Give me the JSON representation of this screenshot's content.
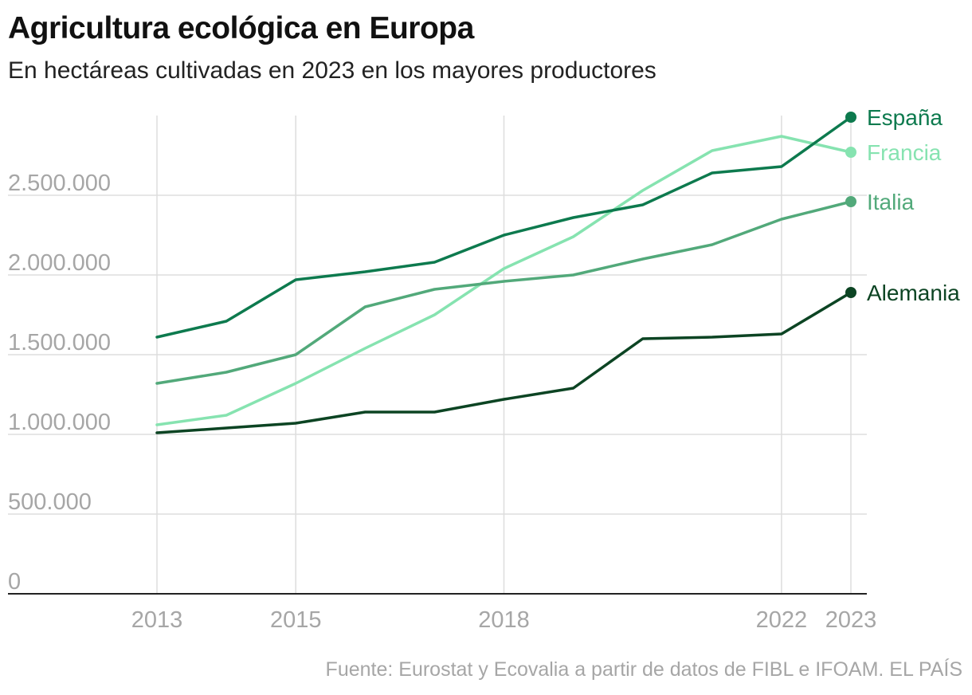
{
  "title": "Agricultura ecológica en Europa",
  "subtitle": "En hectáreas cultivadas en 2023 en los mayores productores",
  "source": "Fuente: Eurostat y Ecovalia a partir de datos de FIBL e IFOAM. EL PAÍS",
  "chart_data": {
    "type": "line",
    "title": "Agricultura ecológica en Europa",
    "subtitle": "En hectáreas cultivadas en 2023 en los mayores productores",
    "xlabel": "",
    "ylabel": "",
    "x": [
      2013,
      2014,
      2015,
      2016,
      2017,
      2018,
      2019,
      2020,
      2021,
      2022,
      2023
    ],
    "x_ticks": [
      "2013",
      "2015",
      "2018",
      "2022",
      "2023"
    ],
    "y_ticks": [
      "0",
      "500.000",
      "1.000.000",
      "1.500.000",
      "2.000.000",
      "2.500.000"
    ],
    "ylim": [
      0,
      3000000
    ],
    "grid": true,
    "legend": "direct labels at line ends (right)",
    "series": [
      {
        "name": "España",
        "color": "#0d7a4e",
        "values": [
          1610000,
          1710000,
          1970000,
          2020000,
          2080000,
          2250000,
          2360000,
          2440000,
          2640000,
          2680000,
          2990000
        ]
      },
      {
        "name": "Francia",
        "color": "#86e3b0",
        "values": [
          1060000,
          1120000,
          1320000,
          1540000,
          1750000,
          2040000,
          2240000,
          2530000,
          2780000,
          2870000,
          2770000
        ]
      },
      {
        "name": "Italia",
        "color": "#52a97a",
        "values": [
          1320000,
          1390000,
          1500000,
          1800000,
          1910000,
          1960000,
          2000000,
          2100000,
          2190000,
          2350000,
          2460000
        ]
      },
      {
        "name": "Alemania",
        "color": "#0c4423",
        "values": [
          1010000,
          1040000,
          1070000,
          1140000,
          1140000,
          1220000,
          1290000,
          1600000,
          1610000,
          1630000,
          1890000
        ]
      }
    ]
  }
}
